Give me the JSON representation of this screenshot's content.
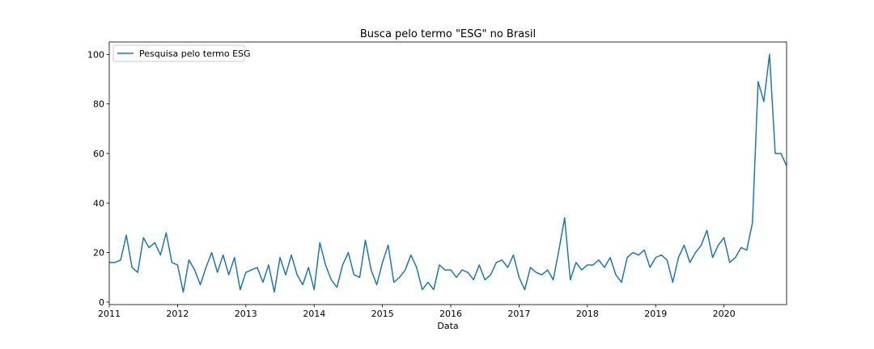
{
  "chart_data": {
    "type": "line",
    "title": "Busca pelo termo \"ESG\" no Brasil",
    "xlabel": "Data",
    "ylabel": "",
    "xlim": [
      "2011-01",
      "2020-12"
    ],
    "ylim": [
      -1,
      105
    ],
    "x_ticks": [
      "2011",
      "2012",
      "2013",
      "2014",
      "2015",
      "2016",
      "2017",
      "2018",
      "2019",
      "2020"
    ],
    "y_ticks": [
      0,
      20,
      40,
      60,
      80,
      100
    ],
    "grid": false,
    "legend_position": "upper-left",
    "color": "#1f77b4",
    "series": [
      {
        "name": "Pesquisa pelo termo ESG",
        "x_start": "2011-01",
        "frequency": "monthly",
        "values": [
          16,
          16,
          17,
          27,
          14,
          12,
          26,
          22,
          24,
          19,
          28,
          16,
          15,
          4,
          17,
          13,
          7,
          14,
          20,
          12,
          19,
          11,
          18,
          5,
          12,
          13,
          14,
          8,
          15,
          4,
          18,
          11,
          19,
          11,
          7,
          14,
          5,
          24,
          15,
          9,
          6,
          15,
          20,
          11,
          10,
          25,
          13,
          7,
          16,
          23,
          8,
          10,
          13,
          19,
          14,
          5,
          8,
          5,
          15,
          13,
          13,
          10,
          13,
          12,
          9,
          15,
          9,
          11,
          16,
          17,
          14,
          19,
          10,
          5,
          14,
          12,
          11,
          13,
          9,
          21,
          34,
          9,
          16,
          13,
          15,
          15,
          17,
          14,
          18,
          11,
          8,
          18,
          20,
          19,
          21,
          14,
          18,
          19,
          17,
          8,
          18,
          23,
          16,
          20,
          23,
          29,
          18,
          23,
          26,
          16,
          18,
          22,
          21,
          32,
          89,
          81,
          100,
          60,
          60,
          55
        ]
      }
    ]
  }
}
